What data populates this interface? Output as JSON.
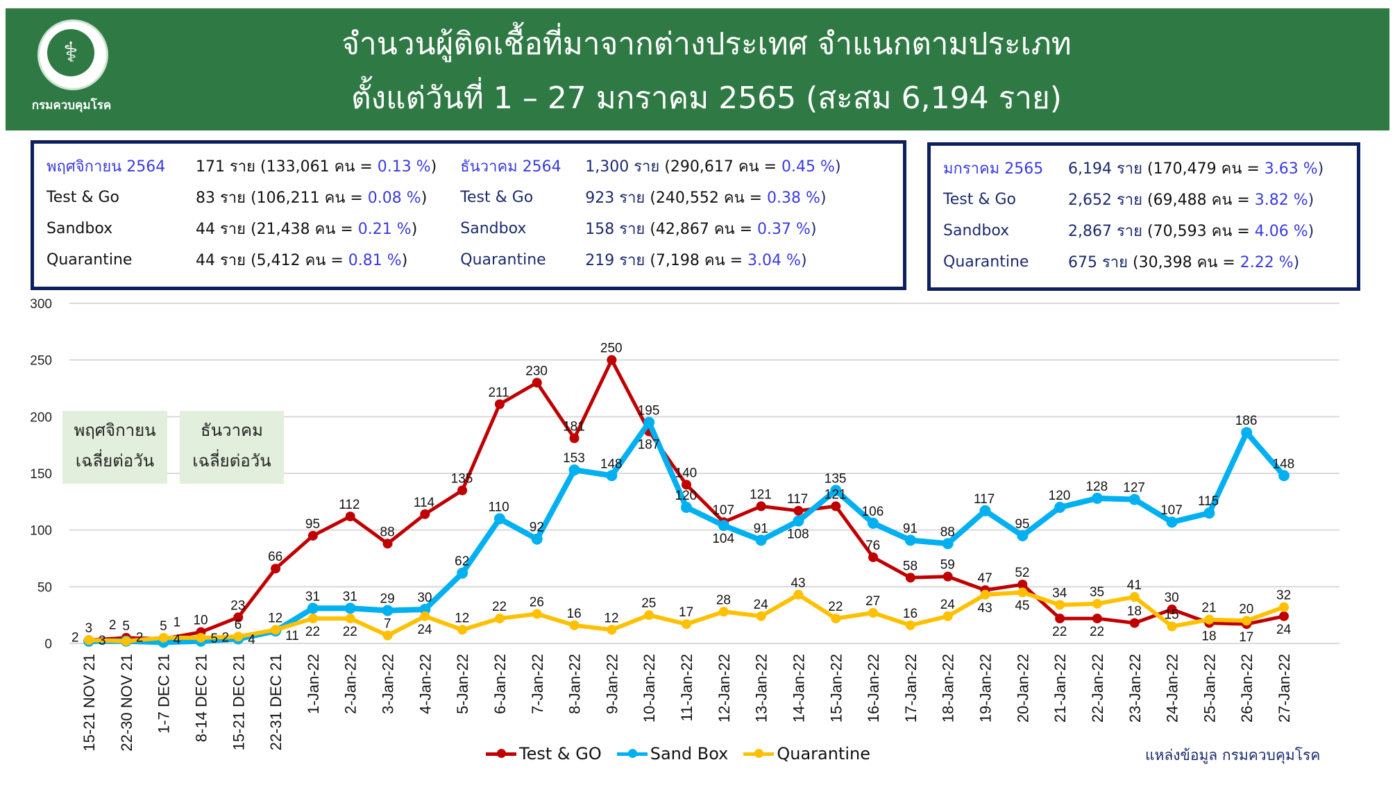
{
  "header": {
    "title_line1": "จำนวนผู้ติดเชื้อที่มาจากต่างประเทศ จำแนกตามประเภท",
    "title_line2": "ตั้งแต่วันที่  1 – 27  มกราคม  2565 (สะสม 6,194 ราย)",
    "logo_text": "กรมควบคุมโรค"
  },
  "summary": [
    {
      "rows": [
        {
          "label": "พฤศจิกายน 2564",
          "cases": "171 ราย",
          "detail": "(133,061 คน = ",
          "pct": "0.13 %",
          "close": ")"
        },
        {
          "label": "Test & Go",
          "cases": "83  ราย",
          "detail": "(106,211 คน = ",
          "pct": "0.08 %",
          "close": ")"
        },
        {
          "label": "Sandbox",
          "cases": "44  ราย",
          "detail": "(21,438 คน  = ",
          "pct": "0.21 %",
          "close": ")"
        },
        {
          "label": "Quarantine",
          "cases": "44  ราย",
          "detail": "(5,412 คน   = ",
          "pct": "0.81 %",
          "close": ")"
        }
      ]
    },
    {
      "rows": [
        {
          "label": "ธันวาคม 2564",
          "cases": "1,300 ราย",
          "detail": "(290,617 คน = ",
          "pct": "0.45 %",
          "close": ")"
        },
        {
          "label": "Test & Go",
          "cases": "923  ราย",
          "detail": "(240,552 คน = ",
          "pct": "0.38 %",
          "close": ")"
        },
        {
          "label": "Sandbox",
          "cases": "158  ราย",
          "detail": "(42,867 คน   = ",
          "pct": "0.37 %",
          "close": ")"
        },
        {
          "label": "Quarantine",
          "cases": "219  ราย",
          "detail": "(7,198 คน    = ",
          "pct": "3.04 %",
          "close": ")"
        }
      ]
    },
    {
      "rows": [
        {
          "label": "มกราคม 2565",
          "cases": "6,194 ราย",
          "detail": "(170,479 คน = ",
          "pct": "3.63 %",
          "close": ")"
        },
        {
          "label": "Test & Go",
          "cases": "2,652 ราย",
          "detail": "(69,488 คน = ",
          "pct": "3.82 %",
          "close": ")"
        },
        {
          "label": "Sandbox",
          "cases": "2,867 ราย",
          "detail": "(70,593 คน = ",
          "pct": "4.06 %",
          "close": ")"
        },
        {
          "label": "Quarantine",
          "cases": "675 ราย",
          "detail": "(30,398 คน = ",
          "pct": "2.22 %",
          "close": ")"
        }
      ]
    }
  ],
  "notes": [
    {
      "line1": "พฤศจิกายน",
      "line2": "เฉลี่ยต่อวัน"
    },
    {
      "line1": "ธันวาคม",
      "line2": "เฉลี่ยต่อวัน"
    }
  ],
  "source": "แหล่งข้อมูล  กรมควบคุมโรค",
  "chart_data": {
    "type": "line",
    "title": "",
    "xlabel": "",
    "ylabel": "",
    "ylim": [
      0,
      300
    ],
    "yticks": [
      0,
      50,
      100,
      150,
      200,
      250,
      300
    ],
    "grid": true,
    "legend_position": "bottom",
    "data_labels": true,
    "categories": [
      "15-21 NOV 21",
      "22-30 NOV 21",
      "1-7 DEC 21",
      "8-14 DEC 21",
      "15-21 DEC 21",
      "22-31 DEC 21",
      "1-Jan-22",
      "2-Jan-22",
      "3-Jan-22",
      "4-Jan-22",
      "5-Jan-22",
      "6-Jan-22",
      "7-Jan-22",
      "8-Jan-22",
      "9-Jan-22",
      "10-Jan-22",
      "11-Jan-22",
      "12-Jan-22",
      "13-Jan-22",
      "14-Jan-22",
      "15-Jan-22",
      "16-Jan-22",
      "17-Jan-22",
      "18-Jan-22",
      "19-Jan-22",
      "20-Jan-22",
      "21-Jan-22",
      "22-Jan-22",
      "23-Jan-22",
      "24-Jan-22",
      "25-Jan-22",
      "26-Jan-22",
      "27-Jan-22"
    ],
    "series": [
      {
        "name": "Test & GO",
        "color": "#c00000",
        "values": [
          3,
          5,
          4,
          10,
          23,
          66,
          95,
          112,
          88,
          114,
          135,
          211,
          230,
          181,
          250,
          187,
          140,
          107,
          121,
          117,
          121,
          76,
          58,
          59,
          47,
          52,
          22,
          22,
          18,
          30,
          18,
          17,
          24
        ]
      },
      {
        "name": "Sand Box",
        "color": "#00b0f0",
        "values": [
          2,
          2,
          1,
          2,
          4,
          11,
          31,
          31,
          29,
          30,
          62,
          110,
          92,
          153,
          148,
          195,
          120,
          104,
          91,
          108,
          135,
          106,
          91,
          88,
          117,
          95,
          120,
          128,
          127,
          107,
          115,
          186,
          148
        ]
      },
      {
        "name": "Quarantine",
        "color": "#ffc000",
        "values": [
          3,
          2,
          5,
          5,
          6,
          12,
          22,
          22,
          7,
          24,
          12,
          22,
          26,
          16,
          12,
          25,
          17,
          28,
          24,
          43,
          22,
          27,
          16,
          24,
          43,
          45,
          34,
          35,
          41,
          15,
          21,
          20,
          32
        ]
      }
    ]
  }
}
